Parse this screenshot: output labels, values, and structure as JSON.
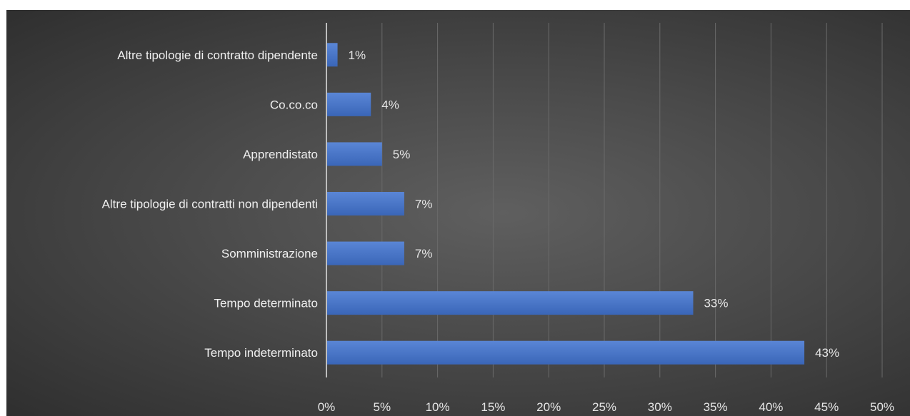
{
  "chart_data": {
    "type": "bar",
    "orientation": "horizontal",
    "categories": [
      "Altre tipologie di contratto dipendente",
      "Co.co.co",
      "Apprendistato",
      "Altre tipologie di contratti non dipendenti",
      "Somministrazione",
      "Tempo determinato",
      "Tempo indeterminato"
    ],
    "values": [
      1,
      4,
      5,
      7,
      7,
      33,
      43
    ],
    "value_labels": [
      "1%",
      "4%",
      "5%",
      "7%",
      "7%",
      "33%",
      "43%"
    ],
    "xlim": [
      0,
      50
    ],
    "x_ticks": [
      0,
      5,
      10,
      15,
      20,
      25,
      30,
      35,
      40,
      45,
      50
    ],
    "x_tick_labels": [
      "0%",
      "5%",
      "10%",
      "15%",
      "20%",
      "25%",
      "30%",
      "35%",
      "40%",
      "45%",
      "50%"
    ],
    "title": "",
    "xlabel": "",
    "ylabel": "",
    "grid": "vertical",
    "legend": "none",
    "colors": {
      "bar_top": "#5a86d6",
      "bar_bottom": "#3a66b8",
      "background": "#4a4a4a",
      "text": "#e6e6e6"
    }
  }
}
